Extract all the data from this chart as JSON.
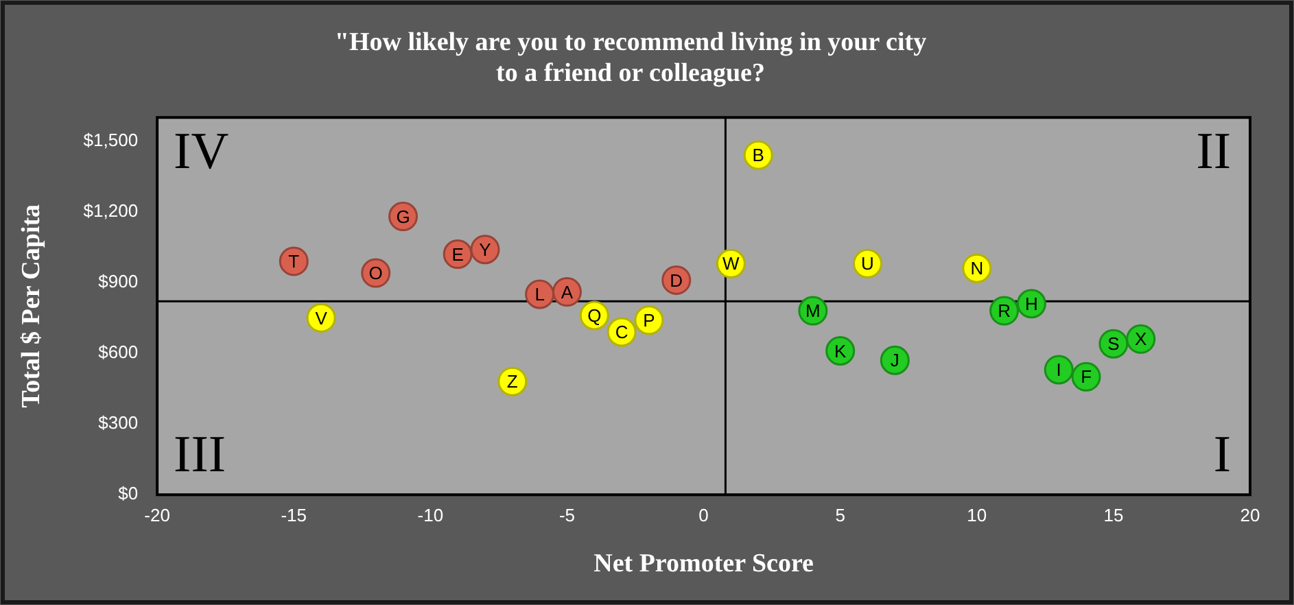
{
  "chart_data": {
    "type": "scatter",
    "title": "\"How likely are you to recommend living in your city\nto a friend or colleague?",
    "xlabel": "Net Promoter Score",
    "ylabel": "Total $ Per Capita",
    "xlim": [
      -20,
      20
    ],
    "xticks": [
      -20,
      -15,
      -10,
      -5,
      0,
      5,
      10,
      15,
      20
    ],
    "ylim": [
      0,
      1600
    ],
    "yticks": [
      {
        "value": 0,
        "label": "$0"
      },
      {
        "value": 300,
        "label": "$300"
      },
      {
        "value": 600,
        "label": "$600"
      },
      {
        "value": 900,
        "label": "$900"
      },
      {
        "value": 1200,
        "label": "$1,200"
      },
      {
        "value": 1500,
        "label": "$1,500"
      }
    ],
    "grid": false,
    "legend": false,
    "marker": "circle",
    "series": [
      {
        "color": "#d9604f",
        "x": [
          -15,
          -12,
          -11,
          -9,
          -8,
          -6,
          -5,
          -1
        ],
        "values": [
          990,
          940,
          1180,
          1020,
          1040,
          850,
          860,
          910
        ]
      },
      {
        "color": "#ffff00",
        "x": [
          -14,
          -4,
          -3,
          -2,
          -7,
          1,
          2,
          6,
          10
        ],
        "values": [
          750,
          760,
          690,
          740,
          480,
          980,
          1440,
          980,
          960
        ]
      },
      {
        "color": "#22cc22",
        "x": [
          4,
          5,
          7,
          11,
          12,
          13,
          14,
          15,
          16
        ],
        "values": [
          780,
          610,
          570,
          780,
          810,
          530,
          500,
          640,
          660
        ]
      }
    ],
    "ref_lines": [
      {
        "axis": "x",
        "value": 0.8,
        "color": "#000000"
      },
      {
        "axis": "y",
        "value": 820,
        "color": "#000000"
      }
    ],
    "annotations": [
      "IV",
      "II",
      "III",
      "I",
      {
        "text": "T",
        "x": -15,
        "y": 990
      },
      {
        "text": "O",
        "x": -12,
        "y": 940
      },
      {
        "text": "G",
        "x": -11,
        "y": 1180
      },
      {
        "text": "E",
        "x": -9,
        "y": 1020
      },
      {
        "text": "Y",
        "x": -8,
        "y": 1040
      },
      {
        "text": "L",
        "x": -6,
        "y": 850
      },
      {
        "text": "A",
        "x": -5,
        "y": 860
      },
      {
        "text": "D",
        "x": -1,
        "y": 910
      },
      {
        "text": "V",
        "x": -14,
        "y": 750
      },
      {
        "text": "Q",
        "x": -4,
        "y": 760
      },
      {
        "text": "C",
        "x": -3,
        "y": 690
      },
      {
        "text": "P",
        "x": -2,
        "y": 740
      },
      {
        "text": "Z",
        "x": -7,
        "y": 480
      },
      {
        "text": "W",
        "x": 1,
        "y": 980
      },
      {
        "text": "B",
        "x": 2,
        "y": 1440
      },
      {
        "text": "U",
        "x": 6,
        "y": 980
      },
      {
        "text": "N",
        "x": 10,
        "y": 960
      },
      {
        "text": "M",
        "x": 4,
        "y": 780
      },
      {
        "text": "K",
        "x": 5,
        "y": 610
      },
      {
        "text": "J",
        "x": 7,
        "y": 570
      },
      {
        "text": "R",
        "x": 11,
        "y": 780
      },
      {
        "text": "H",
        "x": 12,
        "y": 810
      },
      {
        "text": "I",
        "x": 13,
        "y": 530
      },
      {
        "text": "F",
        "x": 14,
        "y": 500
      },
      {
        "text": "S",
        "x": 15,
        "y": 640
      },
      {
        "text": "X",
        "x": 16,
        "y": 660
      }
    ]
  }
}
